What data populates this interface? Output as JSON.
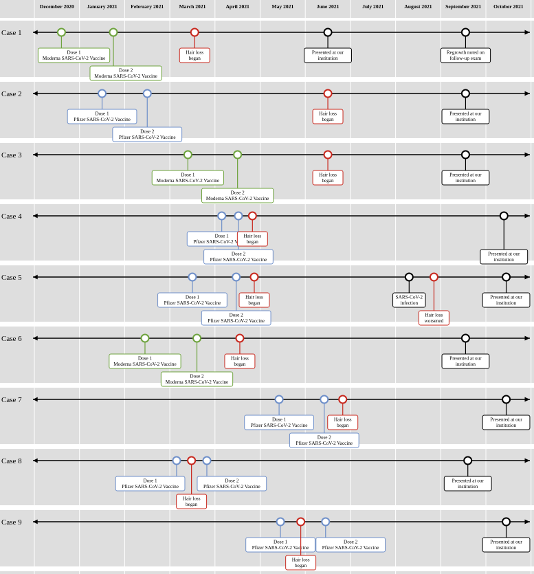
{
  "months": [
    "December 2020",
    "January 2021",
    "February 2021",
    "March 2021",
    "April 2021",
    "May 2021",
    "June 2021",
    "July 2021",
    "August 2021",
    "September 2021",
    "October 2021"
  ],
  "colors": {
    "moderna": "#6ea33e",
    "pfizer": "#6e8fc9",
    "hair_loss": "#c8281e",
    "other": "#000000",
    "band": "#dedede",
    "gap": "#ffffff"
  },
  "cases": [
    {
      "label": "Case 1",
      "events": [
        {
          "month": 0.6,
          "type": "moderna",
          "lines": [
            "Dose 1",
            "Moderna SARS-CoV-2 Vaccine"
          ],
          "pos": "above",
          "level": 0
        },
        {
          "month": 1.75,
          "type": "moderna",
          "lines": [
            "Dose 2",
            "Moderna SARS-CoV-2 Vaccine"
          ],
          "pos": "above",
          "level": 1
        },
        {
          "month": 3.55,
          "type": "hair_loss",
          "lines": [
            "Hair loss",
            "began"
          ],
          "pos": "center",
          "level": 0
        },
        {
          "month": 6.5,
          "type": "other",
          "lines": [
            "Presented at our",
            "institution"
          ],
          "pos": "center",
          "level": 0
        },
        {
          "month": 9.55,
          "type": "other",
          "lines": [
            "Regrowth noted on",
            "follow-up exam"
          ],
          "pos": "center",
          "level": 0
        }
      ]
    },
    {
      "label": "Case 2",
      "events": [
        {
          "month": 1.5,
          "type": "pfizer",
          "lines": [
            "Dose 1",
            "Pfizer SARS-CoV-2 Vaccine"
          ],
          "pos": "center",
          "level": 0
        },
        {
          "month": 2.5,
          "type": "pfizer",
          "lines": [
            "Dose 2",
            "Pfizer SARS-CoV-2 Vaccine"
          ],
          "pos": "center",
          "level": 1
        },
        {
          "month": 6.5,
          "type": "hair_loss",
          "lines": [
            "Hair loss",
            "began"
          ],
          "pos": "center",
          "level": 0
        },
        {
          "month": 9.55,
          "type": "other",
          "lines": [
            "Presented at our",
            "institution"
          ],
          "pos": "center",
          "level": 0
        }
      ]
    },
    {
      "label": "Case 3",
      "events": [
        {
          "month": 3.4,
          "type": "moderna",
          "lines": [
            "Dose 1",
            "Moderna SARS-CoV-2 Vaccine"
          ],
          "pos": "center",
          "level": 0
        },
        {
          "month": 4.5,
          "type": "moderna",
          "lines": [
            "Dose 2",
            "Moderna SARS-CoV-2 Vaccine"
          ],
          "pos": "center",
          "level": 1
        },
        {
          "month": 6.5,
          "type": "hair_loss",
          "lines": [
            "Hair loss",
            "began"
          ],
          "pos": "center",
          "level": 0
        },
        {
          "month": 9.55,
          "type": "other",
          "lines": [
            "Presented at our",
            "institution"
          ],
          "pos": "center",
          "level": 0
        }
      ]
    },
    {
      "label": "Case 4",
      "events": [
        {
          "month": 4.15,
          "type": "pfizer",
          "lines": [
            "Dose 1",
            "Pfizer SARS-CoV-2 Vaccine"
          ],
          "pos": "center",
          "level": 0
        },
        {
          "month": 4.52,
          "type": "pfizer",
          "lines": [
            "Dose 2",
            "Pfizer SARS-CoV-2 Vaccine"
          ],
          "pos": "center",
          "level": 1
        },
        {
          "month": 4.83,
          "type": "hair_loss",
          "lines": [
            "Hair loss",
            "began"
          ],
          "pos": "center",
          "level": 0
        },
        {
          "month": 10.4,
          "type": "other",
          "lines": [
            "Presented at our",
            "institution"
          ],
          "pos": "center",
          "level": 1
        }
      ]
    },
    {
      "label": "Case 5",
      "events": [
        {
          "month": 3.5,
          "type": "pfizer",
          "lines": [
            "Dose 1",
            "Pfizer SARS-CoV-2 Vaccine"
          ],
          "pos": "center",
          "level": 0
        },
        {
          "month": 4.47,
          "type": "pfizer",
          "lines": [
            "Dose 2",
            "Pfizer SARS-CoV-2 Vaccine"
          ],
          "pos": "center",
          "level": 1
        },
        {
          "month": 4.87,
          "type": "hair_loss",
          "lines": [
            "Hair loss",
            "began"
          ],
          "pos": "center",
          "level": 0
        },
        {
          "month": 8.3,
          "type": "other",
          "lines": [
            "SARS-CoV-2",
            "infection"
          ],
          "pos": "center",
          "level": 0
        },
        {
          "month": 8.85,
          "type": "hair_loss",
          "lines": [
            "Hair loss",
            "worsened"
          ],
          "pos": "center",
          "level": 1
        },
        {
          "month": 10.45,
          "type": "other",
          "lines": [
            "Presented at our",
            "institution"
          ],
          "pos": "center",
          "level": 0
        }
      ]
    },
    {
      "label": "Case 6",
      "events": [
        {
          "month": 2.45,
          "type": "moderna",
          "lines": [
            "Dose 1",
            "Moderna SARS-CoV-2 Vaccine"
          ],
          "pos": "center",
          "level": 0
        },
        {
          "month": 3.6,
          "type": "moderna",
          "lines": [
            "Dose 2",
            "Moderna SARS-CoV-2 Vaccine"
          ],
          "pos": "center",
          "level": 1
        },
        {
          "month": 4.55,
          "type": "hair_loss",
          "lines": [
            "Hair loss",
            "began"
          ],
          "pos": "center",
          "level": 0
        },
        {
          "month": 9.55,
          "type": "other",
          "lines": [
            "Presented at our",
            "institution"
          ],
          "pos": "center",
          "level": 0
        }
      ]
    },
    {
      "label": "Case 7",
      "events": [
        {
          "month": 5.42,
          "type": "pfizer",
          "lines": [
            "Dose 1",
            "Pfizer SARS-CoV-2 Vaccine"
          ],
          "pos": "center",
          "level": 0
        },
        {
          "month": 6.42,
          "type": "pfizer",
          "lines": [
            "Dose 2",
            "Pfizer SARS-CoV-2 Vaccine"
          ],
          "pos": "center",
          "level": 1
        },
        {
          "month": 6.83,
          "type": "hair_loss",
          "lines": [
            "Hair loss",
            "began"
          ],
          "pos": "center",
          "level": 0
        },
        {
          "month": 10.45,
          "type": "other",
          "lines": [
            "Presented at our",
            "institution"
          ],
          "pos": "center",
          "level": 0
        }
      ]
    },
    {
      "label": "Case 8",
      "events": [
        {
          "month": 3.15,
          "type": "pfizer",
          "lines": [
            "Dose 1",
            "Pfizer SARS-CoV-2 Vaccine"
          ],
          "pos": "right",
          "level": 0
        },
        {
          "month": 3.48,
          "type": "hair_loss",
          "lines": [
            "Hair loss",
            "began"
          ],
          "pos": "center",
          "level": 1
        },
        {
          "month": 3.82,
          "type": "pfizer",
          "lines": [
            "Dose 2",
            "Pfizer SARS-CoV-2 Vaccine"
          ],
          "pos": "left",
          "level": 0
        },
        {
          "month": 9.6,
          "type": "other",
          "lines": [
            "Presented at our",
            "institution"
          ],
          "pos": "center",
          "level": 0
        }
      ]
    },
    {
      "label": "Case 9",
      "events": [
        {
          "month": 5.45,
          "type": "pfizer",
          "lines": [
            "Dose 1",
            "Pfizer SARS-CoV-2 Vaccine"
          ],
          "pos": "center",
          "level": 0
        },
        {
          "month": 5.9,
          "type": "hair_loss",
          "lines": [
            "Hair loss",
            "began"
          ],
          "pos": "center",
          "level": 1
        },
        {
          "month": 6.45,
          "type": "pfizer",
          "lines": [
            "Dose 2",
            "Pfizer SARS-CoV-2 Vaccine"
          ],
          "pos": "left",
          "level": 0
        },
        {
          "month": 10.45,
          "type": "other",
          "lines": [
            "Presented at our",
            "institution"
          ],
          "pos": "center",
          "level": 0
        }
      ]
    }
  ]
}
